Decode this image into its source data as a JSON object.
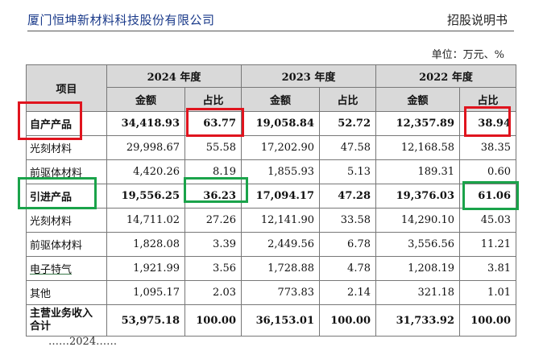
{
  "header": {
    "company": "厦门恒坤新材料科技股份有限公司",
    "doc_type": "招股说明书"
  },
  "unit_label": "单位：万元、%",
  "table": {
    "col_item": "项目",
    "years": [
      "2024 年度",
      "2023 年度",
      "2022 年度"
    ],
    "sub_amount": "金额",
    "sub_ratio": "占比",
    "rows": [
      {
        "label": "自产产品",
        "v": [
          "34,418.93",
          "63.77",
          "19,058.84",
          "52.72",
          "12,357.89",
          "38.94"
        ]
      },
      {
        "label": "光刻材料",
        "v": [
          "29,998.67",
          "55.58",
          "17,202.90",
          "47.58",
          "12,168.58",
          "38.35"
        ]
      },
      {
        "label": "前驱体材料",
        "v": [
          "4,420.26",
          "8.19",
          "1,855.93",
          "5.13",
          "189.31",
          "0.60"
        ]
      },
      {
        "label": "引进产品",
        "v": [
          "19,556.25",
          "36.23",
          "17,094.17",
          "47.28",
          "19,376.03",
          "61.06"
        ]
      },
      {
        "label": "光刻材料",
        "v": [
          "14,711.02",
          "27.26",
          "12,141.90",
          "33.58",
          "14,290.10",
          "45.03"
        ]
      },
      {
        "label": "前驱体材料",
        "v": [
          "1,828.08",
          "3.39",
          "2,449.56",
          "6.78",
          "3,556.56",
          "11.21"
        ]
      },
      {
        "label": "电子特气",
        "v": [
          "1,921.99",
          "3.56",
          "1,728.88",
          "4.78",
          "1,208.19",
          "3.81"
        ]
      },
      {
        "label": "其他",
        "v": [
          "1,095.17",
          "2.03",
          "773.83",
          "2.14",
          "321.18",
          "1.01"
        ]
      },
      {
        "label": "主营业务收入合计",
        "v": [
          "53,975.18",
          "100.00",
          "36,153.01",
          "100.00",
          "31,733.92",
          "100.00"
        ]
      }
    ]
  },
  "bottom_partial_text": "……2024……",
  "colors": {
    "highlight_red": "#e0141e",
    "highlight_green": "#1aa34a",
    "header_blue": "#1a3a8a",
    "table_header_bg": "#d9d9d9"
  }
}
